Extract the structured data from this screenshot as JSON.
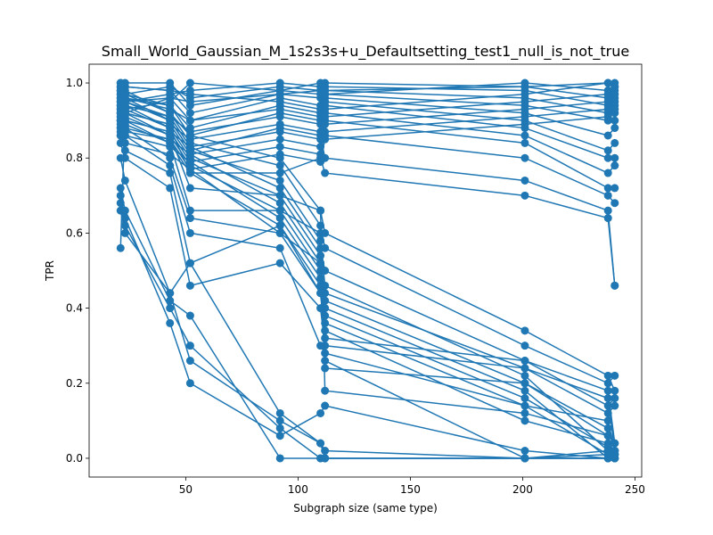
{
  "chart_data": {
    "type": "line",
    "title": "Small_World_Gaussian_M_1s2s3s+u_Defaultsetting_test1_null_is_not_true",
    "xlabel": "Subgraph size (same type)",
    "ylabel": "TPR",
    "xlim": [
      7,
      253
    ],
    "ylim": [
      -0.05,
      1.05
    ],
    "xticks": [
      50,
      100,
      150,
      200,
      250
    ],
    "yticks": [
      0.0,
      0.2,
      0.4,
      0.6,
      0.8,
      1.0
    ],
    "xtick_labels": [
      "50",
      "100",
      "150",
      "200",
      "250"
    ],
    "ytick_labels": [
      "0.0",
      "0.2",
      "0.4",
      "0.6",
      "0.8",
      "1.0"
    ],
    "grid": false,
    "legend": "none",
    "color": "#1f77b4",
    "marker": "circle",
    "x_positions": [
      21,
      23,
      43,
      52,
      92,
      110,
      112,
      201,
      238,
      241
    ],
    "series": [
      {
        "values": [
          0.56,
          0.92,
          0.96,
          0.95,
          0.97,
          0.98,
          0.98,
          0.99,
          1.0,
          0.99
        ]
      },
      {
        "values": [
          0.66,
          0.6,
          0.44,
          0.26,
          0.1,
          0.04,
          0.02,
          0.0,
          0.0,
          0.0
        ]
      },
      {
        "values": [
          0.68,
          0.62,
          0.4,
          0.3,
          0.08,
          0.0,
          0.0,
          0.0,
          0.0,
          0.01
        ]
      },
      {
        "values": [
          0.7,
          0.64,
          0.36,
          0.2,
          0.06,
          0.12,
          0.14,
          0.02,
          0.0,
          0.0
        ]
      },
      {
        "values": [
          0.72,
          0.66,
          0.42,
          0.38,
          0.0,
          0.0,
          0.0,
          0.0,
          0.01,
          0.0
        ]
      },
      {
        "values": [
          0.8,
          0.74,
          0.44,
          0.52,
          0.12,
          0.04,
          0.0,
          0.0,
          0.02,
          0.01
        ]
      },
      {
        "values": [
          0.84,
          0.8,
          0.72,
          0.46,
          0.52,
          0.4,
          0.3,
          0.24,
          0.16,
          0.02
        ]
      },
      {
        "values": [
          0.86,
          0.82,
          0.76,
          0.52,
          0.62,
          0.44,
          0.32,
          0.26,
          0.18,
          0.04
        ]
      },
      {
        "values": [
          0.88,
          0.86,
          0.78,
          0.6,
          0.56,
          0.3,
          0.28,
          0.14,
          0.1,
          0.02
        ]
      },
      {
        "values": [
          0.9,
          0.88,
          0.8,
          0.64,
          0.6,
          0.52,
          0.26,
          0.0,
          0.0,
          0.0
        ]
      },
      {
        "values": [
          0.92,
          0.9,
          0.84,
          0.66,
          0.66,
          0.6,
          0.18,
          0.12,
          0.06,
          0.0
        ]
      },
      {
        "values": [
          0.94,
          0.92,
          0.86,
          0.72,
          0.7,
          0.66,
          0.24,
          0.2,
          0.08,
          0.02
        ]
      },
      {
        "values": [
          0.96,
          0.94,
          0.88,
          0.76,
          0.76,
          0.8,
          0.76,
          0.7,
          0.64,
          0.46
        ]
      },
      {
        "values": [
          0.98,
          0.96,
          0.9,
          0.82,
          0.88,
          0.86,
          0.8,
          0.74,
          0.66,
          0.46
        ]
      },
      {
        "values": [
          1.0,
          0.98,
          0.92,
          0.86,
          0.92,
          0.9,
          0.86,
          0.8,
          0.7,
          0.68
        ]
      },
      {
        "values": [
          0.99,
          0.97,
          0.94,
          0.88,
          0.94,
          0.92,
          0.9,
          0.84,
          0.72,
          0.72
        ]
      },
      {
        "values": [
          0.97,
          0.95,
          0.96,
          0.9,
          0.96,
          0.94,
          0.92,
          0.86,
          0.76,
          0.78
        ]
      },
      {
        "values": [
          0.95,
          0.99,
          0.98,
          0.92,
          0.97,
          0.96,
          0.94,
          0.88,
          0.8,
          0.8
        ]
      },
      {
        "values": [
          0.93,
          1.0,
          1.0,
          0.94,
          0.98,
          0.97,
          0.95,
          0.9,
          0.82,
          0.84
        ]
      },
      {
        "values": [
          0.91,
          0.97,
          0.99,
          0.96,
          0.99,
          0.98,
          0.96,
          0.92,
          0.86,
          0.88
        ]
      },
      {
        "values": [
          0.89,
          0.95,
          0.97,
          0.98,
          1.0,
          0.99,
          0.97,
          0.94,
          0.9,
          0.9
        ]
      },
      {
        "values": [
          0.87,
          0.93,
          0.95,
          1.0,
          0.98,
          1.0,
          0.98,
          0.96,
          0.92,
          0.92
        ]
      },
      {
        "values": [
          1.0,
          0.99,
          0.98,
          0.97,
          0.95,
          0.93,
          0.99,
          0.98,
          0.94,
          0.94
        ]
      },
      {
        "values": [
          0.98,
          0.96,
          0.93,
          0.9,
          0.93,
          0.91,
          1.0,
          0.99,
          0.96,
          0.96
        ]
      },
      {
        "values": [
          0.96,
          0.94,
          0.91,
          0.87,
          0.91,
          0.89,
          0.97,
          1.0,
          0.98,
          0.98
        ]
      },
      {
        "values": [
          0.94,
          0.92,
          0.89,
          0.85,
          0.89,
          0.87,
          0.93,
          0.97,
          1.0,
          1.0
        ]
      },
      {
        "values": [
          0.92,
          0.9,
          0.87,
          0.83,
          0.87,
          0.85,
          0.91,
          0.95,
          0.97,
          0.99
        ]
      },
      {
        "values": [
          0.9,
          0.88,
          0.85,
          0.81,
          0.85,
          0.83,
          0.89,
          0.93,
          0.95,
          0.97
        ]
      },
      {
        "values": [
          0.88,
          0.86,
          0.83,
          0.79,
          0.83,
          0.81,
          0.87,
          0.91,
          0.93,
          0.95
        ]
      },
      {
        "values": [
          0.86,
          0.84,
          0.81,
          0.77,
          0.81,
          0.79,
          0.85,
          0.89,
          0.91,
          0.93
        ]
      },
      {
        "values": [
          0.97,
          0.95,
          0.9,
          0.82,
          0.74,
          0.58,
          0.46,
          0.22,
          0.02,
          0.0
        ]
      },
      {
        "values": [
          0.95,
          0.93,
          0.88,
          0.8,
          0.7,
          0.54,
          0.4,
          0.18,
          0.0,
          0.01
        ]
      },
      {
        "values": [
          0.93,
          0.91,
          0.86,
          0.78,
          0.66,
          0.5,
          0.36,
          0.14,
          0.01,
          0.0
        ]
      },
      {
        "values": [
          0.91,
          0.89,
          0.84,
          0.76,
          0.62,
          0.46,
          0.34,
          0.1,
          0.04,
          0.02
        ]
      },
      {
        "values": [
          0.99,
          0.97,
          0.92,
          0.84,
          0.78,
          0.62,
          0.56,
          0.3,
          0.2,
          0.22
        ]
      },
      {
        "values": [
          0.98,
          0.96,
          0.94,
          0.86,
          0.8,
          0.66,
          0.6,
          0.34,
          0.22,
          0.18
        ]
      },
      {
        "values": [
          0.96,
          0.95,
          0.91,
          0.83,
          0.72,
          0.56,
          0.5,
          0.26,
          0.14,
          0.16
        ]
      },
      {
        "values": [
          0.94,
          0.92,
          0.89,
          0.81,
          0.68,
          0.52,
          0.44,
          0.24,
          0.12,
          0.14
        ]
      },
      {
        "values": [
          0.92,
          0.9,
          0.87,
          0.79,
          0.64,
          0.48,
          0.42,
          0.2,
          0.06,
          0.04
        ]
      },
      {
        "values": [
          0.9,
          0.87,
          0.85,
          0.77,
          0.6,
          0.44,
          0.38,
          0.16,
          0.03,
          0.01
        ]
      }
    ]
  }
}
